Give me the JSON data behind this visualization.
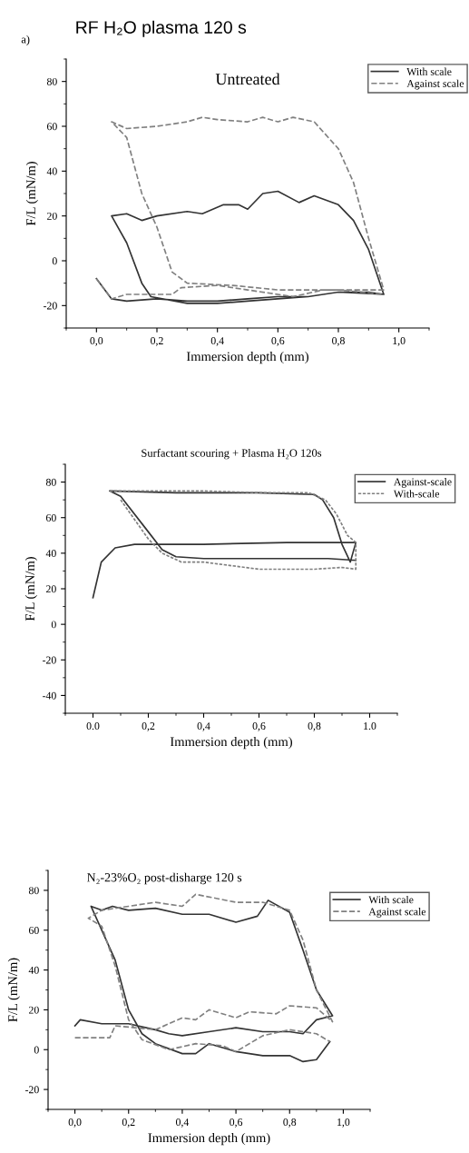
{
  "chart_data": [
    {
      "type": "line",
      "title": "RF H₂O plasma 120 s",
      "xlabel": "Immersion depth (mm)",
      "ylabel": "F/L (mN/m)",
      "annotations": [
        "a)",
        "Untreated"
      ],
      "xlim": [
        -0.1,
        1.1
      ],
      "ylim": [
        -30,
        90
      ],
      "xticks": [
        {
          "value": 0,
          "label": "0,0"
        },
        {
          "value": 0.2,
          "label": "0,2"
        },
        {
          "value": 0.4,
          "label": "0,4"
        },
        {
          "value": 0.6,
          "label": "0,6"
        },
        {
          "value": 0.8,
          "label": "0,8"
        },
        {
          "value": 1.0,
          "label": "1,0"
        }
      ],
      "yticks": [
        -20,
        0,
        20,
        40,
        60,
        80
      ],
      "legend": "top right",
      "grid": false,
      "series": [
        {
          "name": "With scale",
          "color": "#333333",
          "line_style": "solid",
          "x": [
            0.0,
            0.05,
            0.1,
            0.2,
            0.3,
            0.4,
            0.5,
            0.6,
            0.7,
            0.8,
            0.9,
            0.95,
            0.9,
            0.85,
            0.8,
            0.72,
            0.67,
            0.6,
            0.55,
            0.5,
            0.47,
            0.42,
            0.35,
            0.3,
            0.2,
            0.15,
            0.1,
            0.05,
            0.1,
            0.15,
            0.18,
            0.3,
            0.4,
            0.5,
            0.6,
            0.7,
            0.8,
            0.95
          ],
          "values": [
            -8,
            -17,
            -18,
            -17,
            -18,
            -18,
            -17,
            -16,
            -16,
            -14,
            -14,
            -15,
            5,
            18,
            25,
            29,
            26,
            31,
            30,
            23,
            25,
            25,
            21,
            22,
            20,
            18,
            21,
            20,
            8,
            -10,
            -16,
            -19,
            -19,
            -18,
            -17,
            -16,
            -14,
            -15
          ]
        },
        {
          "name": "Against scale",
          "color": "#808080",
          "line_style": "dashed",
          "x": [
            0.0,
            0.05,
            0.1,
            0.25,
            0.28,
            0.4,
            0.5,
            0.65,
            0.75,
            0.95,
            0.9,
            0.85,
            0.8,
            0.72,
            0.65,
            0.6,
            0.55,
            0.5,
            0.4,
            0.35,
            0.3,
            0.2,
            0.1,
            0.05,
            0.1,
            0.15,
            0.2,
            0.25,
            0.3,
            0.45,
            0.6,
            0.8,
            0.95
          ],
          "values": [
            -8,
            -17,
            -15,
            -15,
            -12,
            -11,
            -13,
            -16,
            -13,
            -13,
            10,
            35,
            50,
            62,
            64,
            62,
            64,
            62,
            63,
            64,
            62,
            60,
            59,
            62,
            55,
            30,
            15,
            -5,
            -10,
            -11,
            -13,
            -13,
            -15
          ]
        }
      ]
    },
    {
      "type": "line",
      "title": "Surfactant scouring + Plasma H₂O 120s",
      "xlabel": "Immersion depth (mm)",
      "ylabel": "F/L (mN/m)",
      "xlim": [
        -0.1,
        1.1
      ],
      "ylim": [
        -50,
        90
      ],
      "xticks": [
        {
          "value": 0,
          "label": "0.0"
        },
        {
          "value": 0.2,
          "label": "0,2"
        },
        {
          "value": 0.4,
          "label": "0,4"
        },
        {
          "value": 0.6,
          "label": "0,6"
        },
        {
          "value": 0.8,
          "label": "0,8"
        },
        {
          "value": 1.0,
          "label": "1.0"
        }
      ],
      "yticks": [
        -40,
        -20,
        0,
        20,
        40,
        60,
        80
      ],
      "legend": "top right",
      "grid": false,
      "series": [
        {
          "name": "Against-scale",
          "color": "#333333",
          "line_style": "solid",
          "x": [
            0.0,
            0.03,
            0.08,
            0.15,
            0.4,
            0.7,
            0.95,
            0.93,
            0.9,
            0.87,
            0.83,
            0.8,
            0.6,
            0.3,
            0.06,
            0.1,
            0.2,
            0.25,
            0.3,
            0.4,
            0.5,
            0.7,
            0.85,
            0.95
          ],
          "values": [
            15,
            35,
            43,
            45,
            45,
            46,
            46,
            35,
            45,
            60,
            70,
            73,
            74,
            74,
            75,
            72,
            52,
            42,
            38,
            37,
            37,
            37,
            37,
            36
          ]
        },
        {
          "name": "With-scale",
          "color": "#808080",
          "line_style": "dotted",
          "x": [
            0.06,
            0.2,
            0.4,
            0.6,
            0.78,
            0.84,
            0.88,
            0.92,
            0.95,
            0.95,
            0.9,
            0.8,
            0.7,
            0.6,
            0.5,
            0.45,
            0.4,
            0.32,
            0.25,
            0.2,
            0.1
          ],
          "values": [
            75,
            75,
            75,
            74,
            74,
            70,
            62,
            50,
            46,
            31,
            32,
            31,
            31,
            31,
            33,
            34,
            35,
            35,
            40,
            48,
            70
          ]
        }
      ]
    },
    {
      "type": "line",
      "title": "N₂-23%O₂ post-disharge 120 s",
      "xlabel": "Immersion depth (mm)",
      "ylabel": "F/L (mN/m)",
      "xlim": [
        -0.1,
        1.1
      ],
      "ylim": [
        -30,
        90
      ],
      "xticks": [
        {
          "value": 0,
          "label": "0,0"
        },
        {
          "value": 0.2,
          "label": "0,2"
        },
        {
          "value": 0.4,
          "label": "0,4"
        },
        {
          "value": 0.6,
          "label": "0,6"
        },
        {
          "value": 0.8,
          "label": "0,8"
        },
        {
          "value": 1.0,
          "label": "1,0"
        }
      ],
      "yticks": [
        -20,
        0,
        20,
        40,
        60,
        80
      ],
      "legend": "top right",
      "grid": false,
      "series": [
        {
          "name": "With scale",
          "color": "#333333",
          "line_style": "solid",
          "x": [
            0.0,
            0.02,
            0.1,
            0.2,
            0.3,
            0.35,
            0.4,
            0.5,
            0.6,
            0.7,
            0.8,
            0.85,
            0.9,
            0.96,
            0.9,
            0.85,
            0.8,
            0.72,
            0.68,
            0.6,
            0.5,
            0.4,
            0.3,
            0.2,
            0.14,
            0.1,
            0.06,
            0.15,
            0.2,
            0.25,
            0.3,
            0.4,
            0.45,
            0.5,
            0.55,
            0.6,
            0.7,
            0.8,
            0.85,
            0.9,
            0.95
          ],
          "values": [
            12,
            15,
            13,
            13,
            10,
            8,
            7,
            9,
            11,
            9,
            9,
            8,
            15,
            17,
            30,
            50,
            69,
            75,
            67,
            64,
            68,
            68,
            71,
            70,
            72,
            70,
            72,
            45,
            20,
            8,
            3,
            -2,
            -2,
            3,
            1,
            -1,
            -3,
            -3,
            -6,
            -5,
            4
          ]
        },
        {
          "name": "Against scale",
          "color": "#808080",
          "line_style": "dashed",
          "x": [
            0.0,
            0.13,
            0.15,
            0.3,
            0.4,
            0.45,
            0.5,
            0.6,
            0.65,
            0.75,
            0.8,
            0.9,
            0.96,
            0.9,
            0.85,
            0.8,
            0.7,
            0.6,
            0.45,
            0.4,
            0.3,
            0.2,
            0.1,
            0.05,
            0.1,
            0.15,
            0.2,
            0.25,
            0.35,
            0.45,
            0.55,
            0.6,
            0.7,
            0.8,
            0.9,
            0.95
          ],
          "values": [
            6,
            6,
            12,
            10,
            16,
            15,
            20,
            16,
            19,
            18,
            22,
            21,
            14,
            30,
            55,
            70,
            74,
            74,
            78,
            72,
            74,
            72,
            70,
            66,
            62,
            42,
            15,
            5,
            0,
            3,
            2,
            -1,
            7,
            10,
            8,
            4
          ]
        }
      ]
    }
  ]
}
